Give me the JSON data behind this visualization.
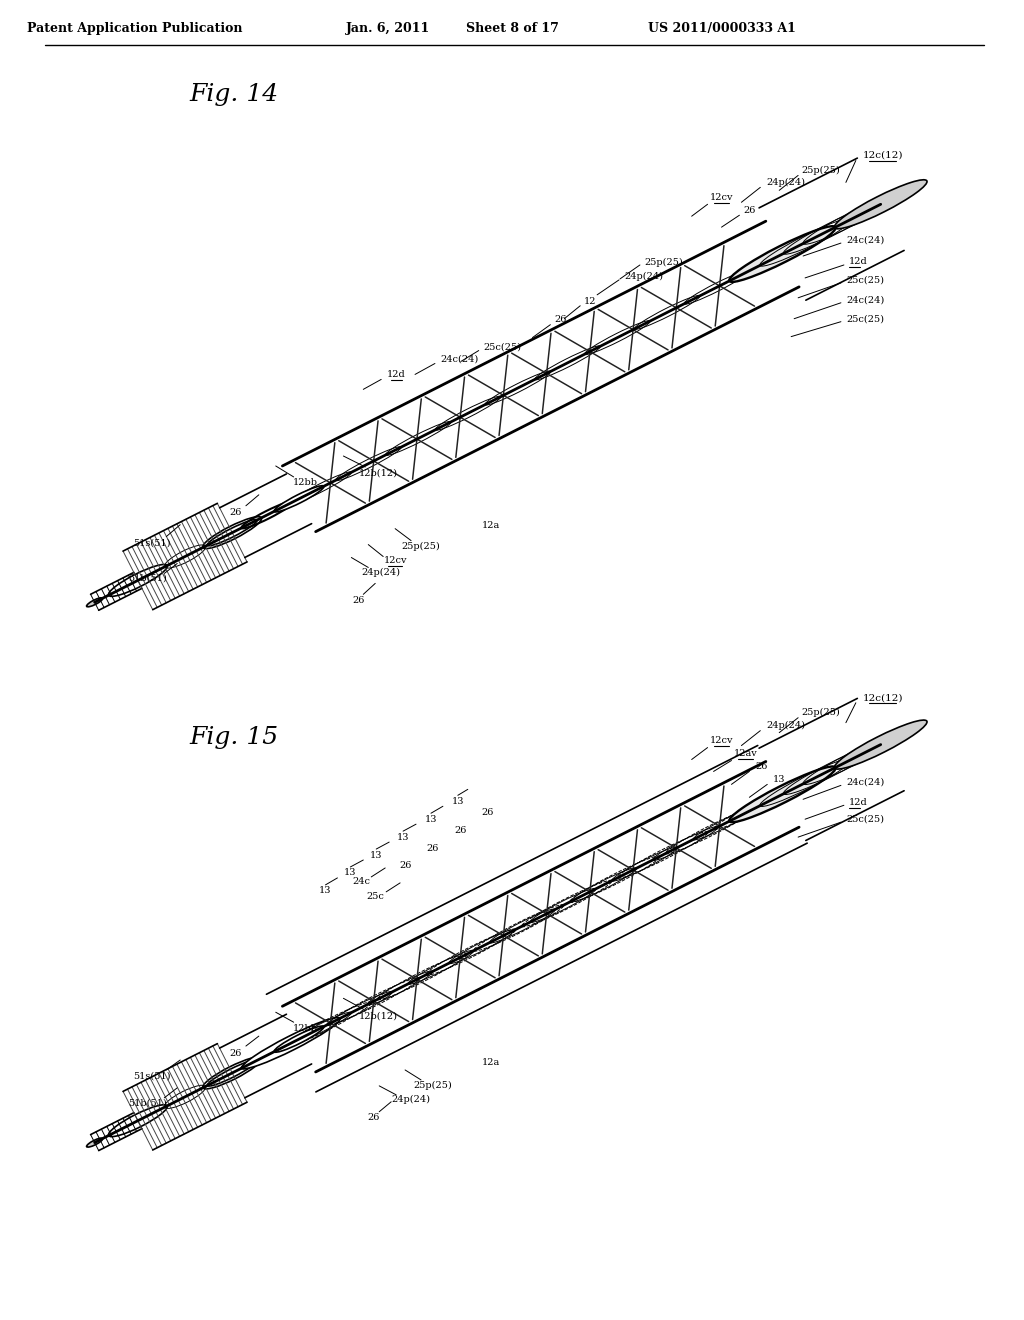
{
  "bg_color": "#ffffff",
  "header_text": "Patent Application Publication",
  "header_date": "Jan. 6, 2011",
  "header_sheet": "Sheet 8 of 17",
  "header_patent": "US 2011/0000333 A1",
  "fig14_label": "Fig. 14",
  "fig15_label": "Fig. 15",
  "line_color": "#000000",
  "text_color": "#000000",
  "line_width": 1.2,
  "thin_line": 0.7,
  "thick_line": 2.0
}
